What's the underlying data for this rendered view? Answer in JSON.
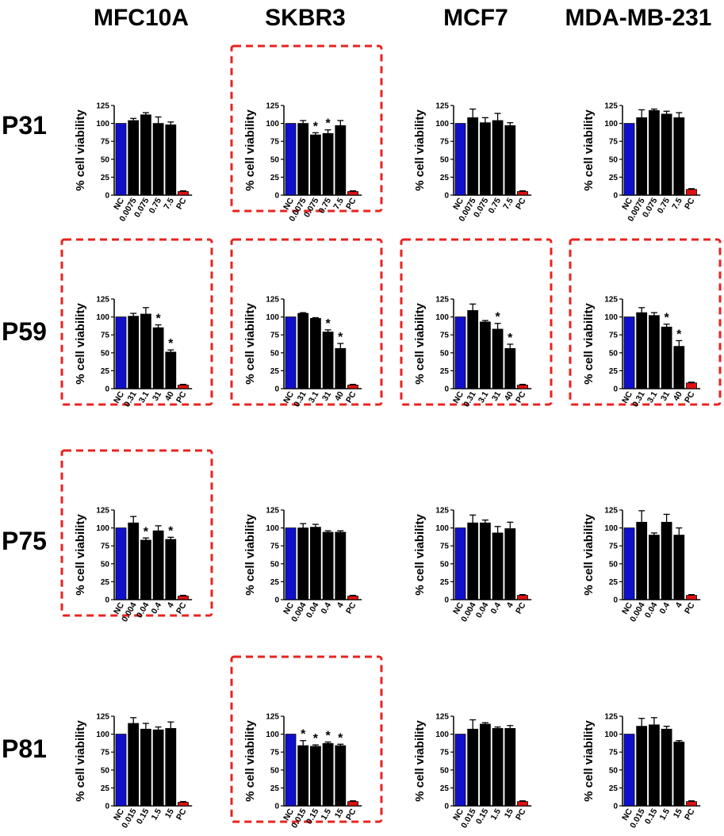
{
  "column_headers": [
    "MFC10A",
    "SKBR3",
    "MCF7",
    "MDA-MB-231"
  ],
  "row_headers": [
    "P31",
    "P59",
    "P75",
    "P81"
  ],
  "colors": {
    "control_negative": "#1010cc",
    "treatment": "#000000",
    "control_positive": "#dd1111",
    "highlight_box": "#e8231f"
  },
  "chart_data": [
    {
      "type": "bar",
      "row": "P31",
      "column": "MFC10A",
      "highlighted": false,
      "ylabel": "% cell viability",
      "yticks": [
        "0",
        "25",
        "50",
        "75",
        "100",
        "125"
      ],
      "ylim": [
        0,
        125
      ],
      "categories": [
        "NC",
        "0.0075",
        "0.075",
        "0.75",
        "7.5",
        "PC"
      ],
      "values": [
        100,
        104,
        112,
        100,
        98,
        5
      ],
      "errors": [
        0,
        3,
        3,
        9,
        4,
        1
      ],
      "significant": [
        false,
        false,
        false,
        false,
        false,
        false
      ]
    },
    {
      "type": "bar",
      "row": "P31",
      "column": "SKBR3",
      "highlighted": true,
      "ylabel": "% cell viability",
      "yticks": [
        "0",
        "25",
        "50",
        "75",
        "100",
        "125"
      ],
      "ylim": [
        0,
        125
      ],
      "categories": [
        "NC",
        "0.0075",
        "0.075",
        "0.75",
        "7.5",
        "PC"
      ],
      "values": [
        100,
        100,
        84,
        86,
        97,
        5
      ],
      "errors": [
        0,
        4,
        3,
        5,
        7,
        1
      ],
      "significant": [
        false,
        false,
        true,
        true,
        false,
        false
      ]
    },
    {
      "type": "bar",
      "row": "P31",
      "column": "MCF7",
      "highlighted": false,
      "ylabel": "% cell viability",
      "yticks": [
        "0",
        "25",
        "50",
        "75",
        "100",
        "125"
      ],
      "ylim": [
        0,
        125
      ],
      "categories": [
        "NC",
        "0.0075",
        "0.075",
        "0.75",
        "7.5",
        "PC"
      ],
      "values": [
        100,
        108,
        101,
        104,
        97,
        5
      ],
      "errors": [
        0,
        12,
        7,
        10,
        4,
        1
      ],
      "significant": [
        false,
        false,
        false,
        false,
        false,
        false
      ]
    },
    {
      "type": "bar",
      "row": "P31",
      "column": "MDA-MB-231",
      "highlighted": false,
      "ylabel": "% cell viability",
      "yticks": [
        "0",
        "25",
        "50",
        "75",
        "100",
        "125"
      ],
      "ylim": [
        0,
        125
      ],
      "categories": [
        "NC",
        "0.0075",
        "0.075",
        "0.75",
        "7.5",
        "PC"
      ],
      "values": [
        100,
        108,
        118,
        113,
        108,
        8
      ],
      "errors": [
        0,
        11,
        2,
        4,
        7,
        1
      ],
      "significant": [
        false,
        false,
        false,
        false,
        false,
        false
      ]
    },
    {
      "type": "bar",
      "row": "P59",
      "column": "MFC10A",
      "highlighted": true,
      "ylabel": "% cell viability",
      "yticks": [
        "0",
        "25",
        "50",
        "75",
        "100",
        "125"
      ],
      "ylim": [
        0,
        125
      ],
      "categories": [
        "NC",
        "0.31",
        "3.1",
        "31",
        "40",
        "PC"
      ],
      "values": [
        100,
        101,
        104,
        85,
        51,
        5
      ],
      "errors": [
        0,
        4,
        9,
        4,
        3,
        1
      ],
      "significant": [
        false,
        false,
        false,
        true,
        true,
        false
      ]
    },
    {
      "type": "bar",
      "row": "P59",
      "column": "SKBR3",
      "highlighted": true,
      "ylabel": "% cell viability",
      "yticks": [
        "0",
        "25",
        "50",
        "75",
        "100",
        "125"
      ],
      "ylim": [
        0,
        125
      ],
      "categories": [
        "NC",
        "0.31",
        "3.1",
        "31",
        "40",
        "PC"
      ],
      "values": [
        100,
        105,
        98,
        79,
        56,
        5
      ],
      "errors": [
        0,
        1,
        1,
        3,
        7,
        1
      ],
      "significant": [
        false,
        false,
        false,
        true,
        true,
        false
      ]
    },
    {
      "type": "bar",
      "row": "P59",
      "column": "MCF7",
      "highlighted": true,
      "ylabel": "% cell viability",
      "yticks": [
        "0",
        "25",
        "50",
        "75",
        "100",
        "125"
      ],
      "ylim": [
        0,
        125
      ],
      "categories": [
        "NC",
        "0.31",
        "3.1",
        "31",
        "40",
        "PC"
      ],
      "values": [
        100,
        109,
        93,
        83,
        56,
        5
      ],
      "errors": [
        0,
        9,
        2,
        8,
        6,
        1
      ],
      "significant": [
        false,
        false,
        false,
        true,
        true,
        false
      ]
    },
    {
      "type": "bar",
      "row": "P59",
      "column": "MDA-MB-231",
      "highlighted": true,
      "ylabel": "% cell viability",
      "yticks": [
        "0",
        "25",
        "50",
        "75",
        "100",
        "125"
      ],
      "ylim": [
        0,
        125
      ],
      "categories": [
        "NC",
        "0.31",
        "3.1",
        "31",
        "40",
        "PC"
      ],
      "values": [
        100,
        106,
        102,
        86,
        59,
        8
      ],
      "errors": [
        0,
        7,
        4,
        4,
        8,
        1
      ],
      "significant": [
        false,
        false,
        false,
        true,
        true,
        false
      ]
    },
    {
      "type": "bar",
      "row": "P75",
      "column": "MFC10A",
      "highlighted": true,
      "ylabel": "% cell viability",
      "yticks": [
        "0",
        "25",
        "50",
        "75",
        "100",
        "125"
      ],
      "ylim": [
        0,
        125
      ],
      "categories": [
        "NC",
        "0.004",
        "0.04",
        "0.4",
        "4",
        "PC"
      ],
      "values": [
        100,
        107,
        83,
        96,
        84,
        5
      ],
      "errors": [
        0,
        9,
        3,
        7,
        3,
        1
      ],
      "significant": [
        false,
        false,
        true,
        false,
        true,
        false
      ]
    },
    {
      "type": "bar",
      "row": "P75",
      "column": "SKBR3",
      "highlighted": false,
      "ylabel": "% cell viability",
      "yticks": [
        "0",
        "25",
        "50",
        "75",
        "100",
        "125"
      ],
      "ylim": [
        0,
        125
      ],
      "categories": [
        "NC",
        "0.004",
        "0.04",
        "0.4",
        "4",
        "PC"
      ],
      "values": [
        100,
        100,
        101,
        94,
        94,
        5
      ],
      "errors": [
        0,
        6,
        4,
        2,
        2,
        1
      ],
      "significant": [
        false,
        false,
        false,
        false,
        false,
        false
      ]
    },
    {
      "type": "bar",
      "row": "P75",
      "column": "MCF7",
      "highlighted": false,
      "ylabel": "% cell viability",
      "yticks": [
        "0",
        "25",
        "50",
        "75",
        "100",
        "125"
      ],
      "ylim": [
        0,
        125
      ],
      "categories": [
        "NC",
        "0.004",
        "0.04",
        "0.4",
        "4",
        "PC"
      ],
      "values": [
        100,
        107,
        107,
        93,
        99,
        6
      ],
      "errors": [
        0,
        11,
        4,
        9,
        9,
        1
      ],
      "significant": [
        false,
        false,
        false,
        false,
        false,
        false
      ]
    },
    {
      "type": "bar",
      "row": "P75",
      "column": "MDA-MB-231",
      "highlighted": false,
      "ylabel": "% cell viability",
      "yticks": [
        "0",
        "25",
        "50",
        "75",
        "100",
        "125"
      ],
      "ylim": [
        0,
        125
      ],
      "categories": [
        "NC",
        "0.004",
        "0.04",
        "0.4",
        "4",
        "PC"
      ],
      "values": [
        100,
        108,
        90,
        108,
        90,
        6
      ],
      "errors": [
        0,
        16,
        3,
        11,
        10,
        1
      ],
      "significant": [
        false,
        false,
        false,
        false,
        false,
        false
      ]
    },
    {
      "type": "bar",
      "row": "P81",
      "column": "MFC10A",
      "highlighted": false,
      "ylabel": "% cell viability",
      "yticks": [
        "0",
        "25",
        "50",
        "75",
        "100",
        "125"
      ],
      "ylim": [
        0,
        125
      ],
      "categories": [
        "NC",
        "0.015",
        "0.15",
        "1.5",
        "15",
        "PC"
      ],
      "values": [
        100,
        115,
        107,
        106,
        108,
        5
      ],
      "errors": [
        0,
        8,
        8,
        4,
        9,
        1
      ],
      "significant": [
        false,
        false,
        false,
        false,
        false,
        false
      ]
    },
    {
      "type": "bar",
      "row": "P81",
      "column": "SKBR3",
      "highlighted": true,
      "ylabel": "% cell viability",
      "yticks": [
        "0",
        "25",
        "50",
        "75",
        "100",
        "125"
      ],
      "ylim": [
        0,
        125
      ],
      "categories": [
        "NC",
        "0.015",
        "0.15",
        "1.5",
        "15",
        "PC"
      ],
      "values": [
        100,
        84,
        83,
        87,
        84,
        6
      ],
      "errors": [
        0,
        7,
        2,
        2,
        2,
        1
      ],
      "significant": [
        false,
        true,
        true,
        true,
        true,
        false
      ]
    },
    {
      "type": "bar",
      "row": "P81",
      "column": "MCF7",
      "highlighted": false,
      "ylabel": "% cell viability",
      "yticks": [
        "0",
        "25",
        "50",
        "75",
        "100",
        "125"
      ],
      "ylim": [
        0,
        125
      ],
      "categories": [
        "NC",
        "0.015",
        "0.15",
        "1.5",
        "15",
        "PC"
      ],
      "values": [
        100,
        107,
        114,
        108,
        108,
        6
      ],
      "errors": [
        0,
        13,
        2,
        2,
        4,
        1
      ],
      "significant": [
        false,
        false,
        false,
        false,
        false,
        false
      ]
    },
    {
      "type": "bar",
      "row": "P81",
      "column": "MDA-MB-231",
      "highlighted": false,
      "ylabel": "% cell viability",
      "yticks": [
        "0",
        "25",
        "50",
        "75",
        "100",
        "125"
      ],
      "ylim": [
        0,
        125
      ],
      "categories": [
        "NC",
        "0.015",
        "0.15",
        "1.5",
        "15",
        "PC"
      ],
      "values": [
        100,
        111,
        113,
        107,
        89,
        6
      ],
      "errors": [
        0,
        11,
        10,
        4,
        2,
        1
      ],
      "significant": [
        false,
        false,
        false,
        false,
        false,
        false
      ]
    }
  ]
}
